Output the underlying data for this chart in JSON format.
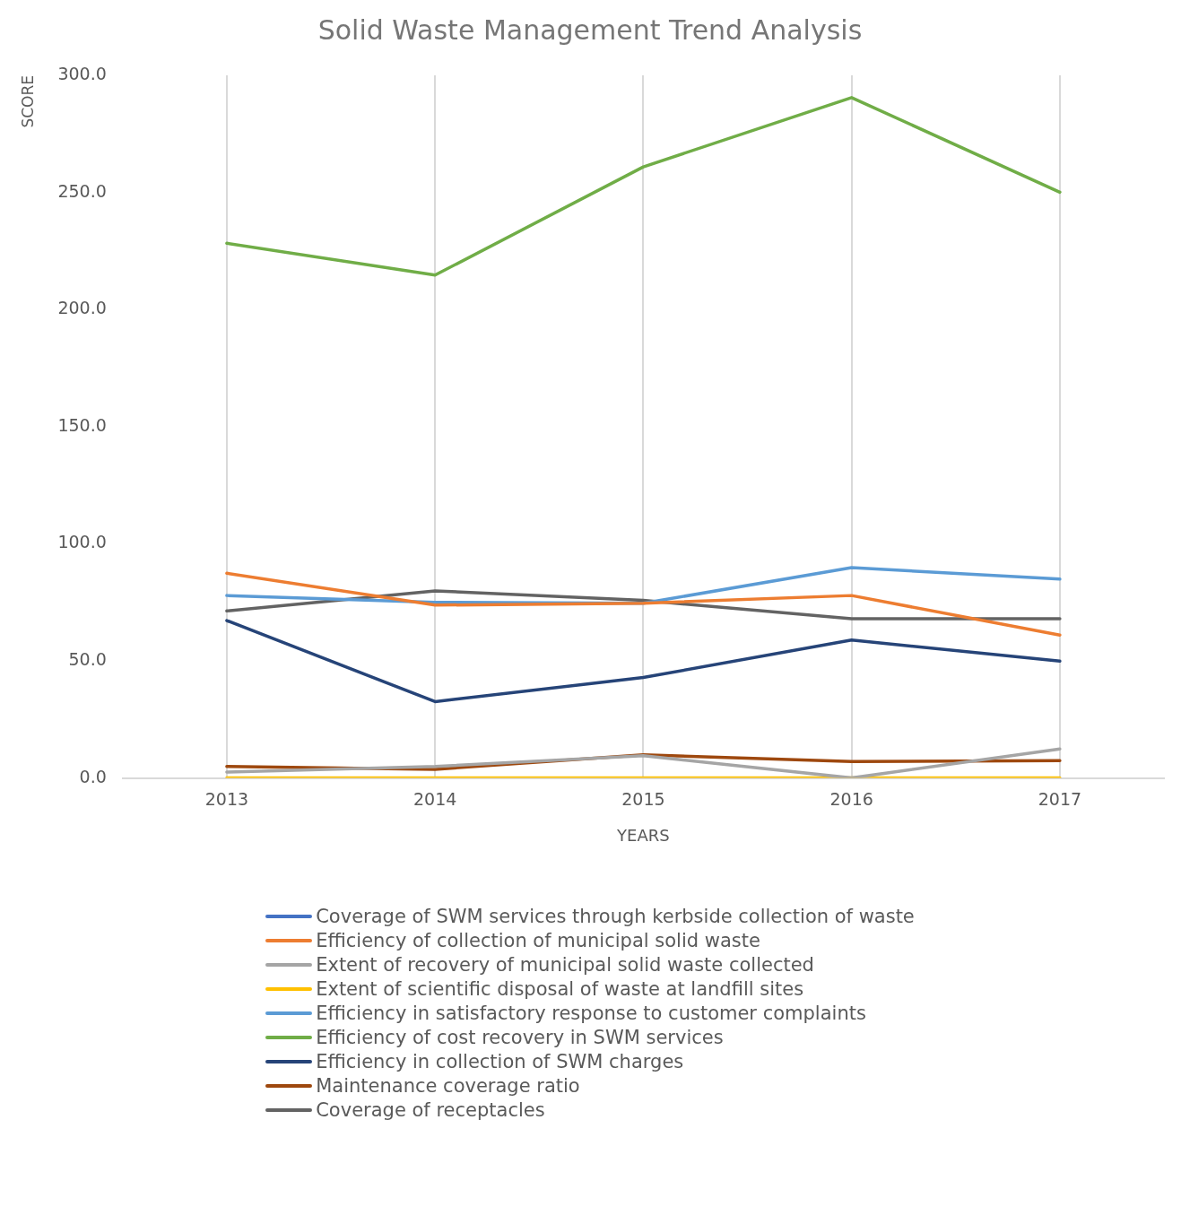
{
  "chart_data": {
    "type": "line",
    "title": "Solid Waste Management Trend Analysis",
    "xlabel": "YEARS",
    "ylabel": "SCORE",
    "categories": [
      "2013",
      "2014",
      "2015",
      "2016",
      "2017"
    ],
    "ylim": [
      0,
      300
    ],
    "yticks": [
      {
        "value": 0,
        "label": "0.0"
      },
      {
        "value": 50,
        "label": "50.0"
      },
      {
        "value": 100,
        "label": "100.0"
      },
      {
        "value": 150,
        "label": "150.0"
      },
      {
        "value": 200,
        "label": "200.0"
      },
      {
        "value": 250,
        "label": "250.0"
      },
      {
        "value": 300,
        "label": "300.0"
      }
    ],
    "grid": "x",
    "legend": "bottom",
    "marker": "none",
    "line_style": "solid",
    "series": [
      {
        "name": "Coverage of SWM services through kerbside collection of waste",
        "color": "#4472c4",
        "values": [
          null,
          null,
          null,
          null,
          null
        ]
      },
      {
        "name": "Efficiency of collection of municipal solid waste",
        "color": "#ed7d31",
        "values": [
          87.4,
          73.8,
          74.6,
          77.9,
          61.0
        ]
      },
      {
        "name": "Extent of recovery of municipal solid waste collected",
        "color": "#a5a5a5",
        "values": [
          2.5,
          4.9,
          9.5,
          0,
          12.4
        ]
      },
      {
        "name": "Extent of scientific disposal of waste at landfill sites",
        "color": "#ffc000",
        "values": [
          0,
          0,
          0,
          0,
          0
        ]
      },
      {
        "name": "Efficiency in satisfactory response to customer complaints",
        "color": "#5b9bd5",
        "values": [
          77.9,
          75.0,
          74.6,
          89.8,
          84.9
        ]
      },
      {
        "name": "Efficiency of cost recovery in SWM services",
        "color": "#70ad47",
        "values": [
          228.3,
          214.7,
          260.9,
          290.5,
          250.1
        ]
      },
      {
        "name": "Efficiency in collection of SWM charges",
        "color": "#264478",
        "values": [
          67.2,
          32.6,
          42.9,
          58.9,
          49.9
        ]
      },
      {
        "name": "Maintenance coverage ratio",
        "color": "#9e480e",
        "values": [
          4.9,
          3.7,
          9.9,
          7.0,
          7.4
        ]
      },
      {
        "name": "Coverage of receptacles",
        "color": "#636363",
        "values": [
          71.3,
          79.9,
          75.8,
          68.0,
          68.0
        ]
      }
    ]
  }
}
